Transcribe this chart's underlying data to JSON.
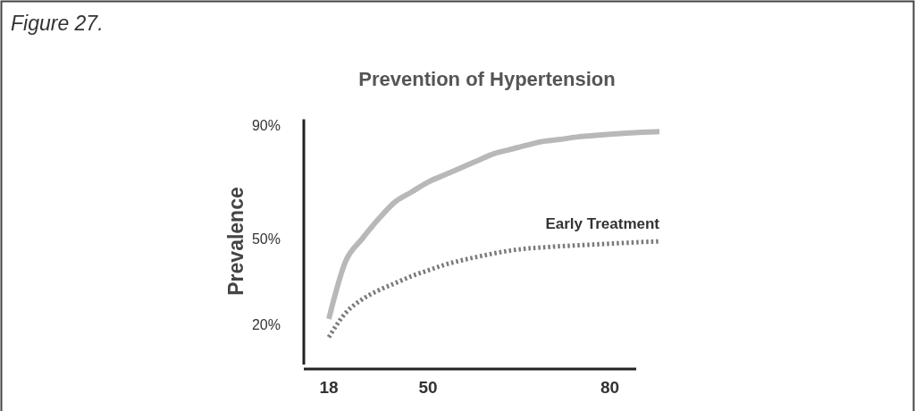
{
  "chart_data": {
    "type": "line",
    "title": "Prevention of Hypertension",
    "ylabel": "Prevalence",
    "annotations": [
      "Figure 27."
    ],
    "categories": [
      "18",
      null,
      null,
      null,
      null,
      null,
      "50",
      null,
      null,
      null,
      null,
      null,
      null,
      null,
      null,
      null,
      null,
      "80",
      null,
      null,
      null
    ],
    "ylim": [
      6,
      92
    ],
    "yticks": [
      {
        "value": 20,
        "label": "20%"
      },
      {
        "value": 50,
        "label": "50%"
      },
      {
        "value": 90,
        "label": "90%"
      }
    ],
    "grid": false,
    "legend": false,
    "marker": "none",
    "series": [
      {
        "color": "#b8b8b8",
        "line_style": "solid",
        "values": [
          22,
          42,
          50,
          57,
          63,
          66.5,
          70,
          72.5,
          75,
          77.5,
          80,
          81.5,
          83,
          84.3,
          85,
          85.8,
          86.3,
          86.8,
          87.2,
          87.5,
          87.7
        ]
      },
      {
        "name": "Early Treatment",
        "color": "#7a7a7a",
        "line_style": "dotted",
        "values": [
          15.6,
          24,
          28.8,
          32,
          34.5,
          37,
          39,
          41,
          42.5,
          43.8,
          45,
          46,
          46.7,
          47.1,
          47.5,
          47.8,
          48.1,
          48.4,
          48.7,
          49,
          49.2
        ]
      }
    ]
  }
}
